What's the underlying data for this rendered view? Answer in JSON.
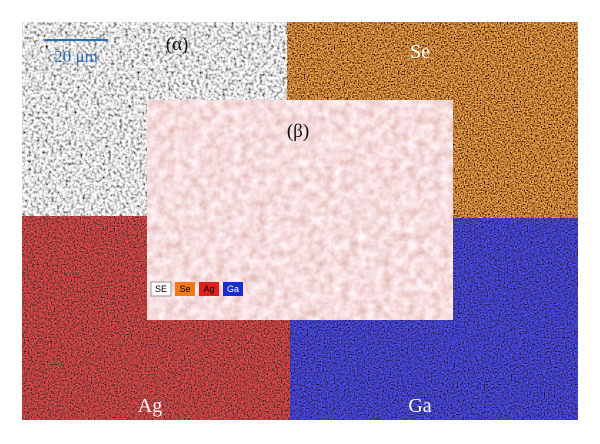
{
  "sem_panel": {
    "label": "(α)",
    "scale_bar": "20 μm"
  },
  "maps": [
    {
      "element": "Se"
    },
    {
      "element": "Ag"
    },
    {
      "element": "Ga"
    }
  ],
  "overlay": {
    "label": "(β)",
    "legend": [
      "SE",
      "Se",
      "Ag",
      "Ga"
    ]
  }
}
